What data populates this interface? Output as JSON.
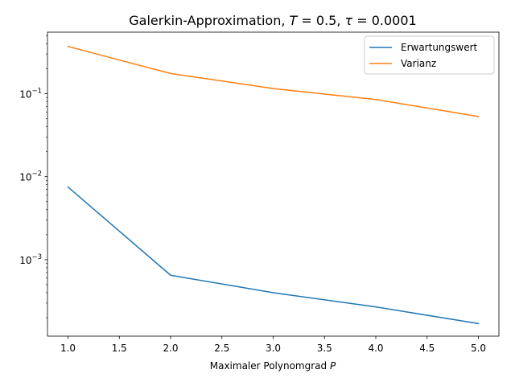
{
  "chart_data": {
    "type": "line",
    "title": "Galerkin-Approximation, T = 0.5, τ = 0.0001",
    "title_parts": {
      "prefix": "Galerkin-Approximation, ",
      "var1": "T",
      "eq1": " = 0.5, ",
      "var2": "τ",
      "eq2": " = 0.0001"
    },
    "xlabel": "Maximaler Polynomgrad",
    "xlabel_var": "P",
    "ylabel": "",
    "x": [
      1,
      2,
      3,
      4,
      5
    ],
    "xlim": [
      0.8,
      5.2
    ],
    "ylim": [
      0.00012,
      0.55
    ],
    "yscale": "log",
    "grid": false,
    "legend_position": "top-right",
    "xticks": [
      {
        "value": 1.0,
        "label": "1.0"
      },
      {
        "value": 1.5,
        "label": "1.5"
      },
      {
        "value": 2.0,
        "label": "2.0"
      },
      {
        "value": 2.5,
        "label": "2.5"
      },
      {
        "value": 3.0,
        "label": "3.0"
      },
      {
        "value": 3.5,
        "label": "3.5"
      },
      {
        "value": 4.0,
        "label": "4.0"
      },
      {
        "value": 4.5,
        "label": "4.5"
      },
      {
        "value": 5.0,
        "label": "5.0"
      }
    ],
    "yticks": [
      {
        "value": 0.001,
        "base": "10",
        "exp": "−3"
      },
      {
        "value": 0.01,
        "base": "10",
        "exp": "−2"
      },
      {
        "value": 0.1,
        "base": "10",
        "exp": "−1"
      }
    ],
    "series": [
      {
        "name": "Erwartungswert",
        "color": "#1f77b4",
        "values": [
          0.0075,
          0.00065,
          0.0004,
          0.00027,
          0.00017
        ]
      },
      {
        "name": "Varianz",
        "color": "#ff7f0e",
        "values": [
          0.37,
          0.175,
          0.115,
          0.085,
          0.053
        ]
      }
    ]
  }
}
